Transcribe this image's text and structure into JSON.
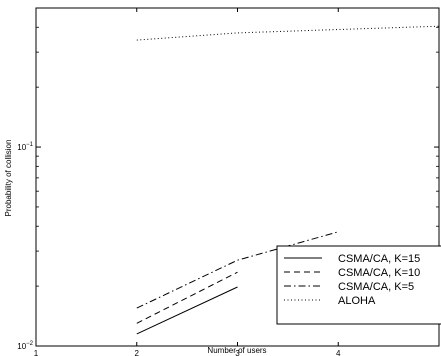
{
  "chart_data": {
    "type": "line",
    "xlabel": "Number of users",
    "ylabel": "Probability of collision",
    "xlim": [
      1,
      5
    ],
    "ylim": [
      0.01,
      0.5
    ],
    "yscale": "log",
    "x_ticks": [
      {
        "value": 1,
        "label": "1"
      },
      {
        "value": 2,
        "label": "2"
      },
      {
        "value": 3,
        "label": "3"
      },
      {
        "value": 4,
        "label": "4"
      }
    ],
    "y_ticks": [
      {
        "value": 0.01,
        "base": "10",
        "exp": "−2"
      },
      {
        "value": 0.1,
        "base": "10",
        "exp": "−1"
      }
    ],
    "grid": false,
    "legend_position": "bottom-right",
    "series": [
      {
        "name": "CSMA/CA, K=15",
        "style": "solid",
        "color": "#000000",
        "x": [
          2,
          3
        ],
        "y": [
          0.0115,
          0.0198
        ]
      },
      {
        "name": "CSMA/CA, K=10",
        "style": "dashed",
        "color": "#000000",
        "x": [
          2,
          3
        ],
        "y": [
          0.013,
          0.0235
        ]
      },
      {
        "name": "CSMA/CA, K=5",
        "style": "dashdot",
        "color": "#000000",
        "x": [
          2,
          3,
          4
        ],
        "y": [
          0.0155,
          0.027,
          0.0375
        ]
      },
      {
        "name": "ALOHA",
        "style": "dotted",
        "color": "#000000",
        "x": [
          2,
          3,
          4,
          5
        ],
        "y": [
          0.345,
          0.375,
          0.39,
          0.405
        ]
      }
    ]
  }
}
